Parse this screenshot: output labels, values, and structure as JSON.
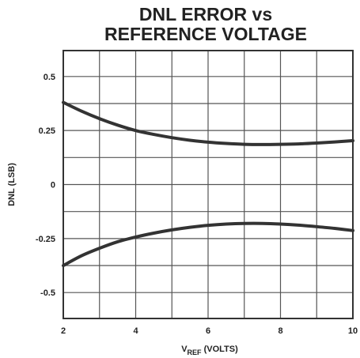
{
  "chart_data": {
    "type": "line",
    "title_lines": [
      "DNL ERROR vs",
      "REFERENCE VOLTAGE"
    ],
    "xlabel": {
      "main": "V",
      "sub": "REF",
      "rest": " (VOLTS)"
    },
    "ylabel": "DNL (LSB)",
    "xlim": [
      2,
      10
    ],
    "ylim": [
      -0.62,
      0.62
    ],
    "x_tick_labels": [
      {
        "value": 2,
        "label": "2"
      },
      {
        "value": 4,
        "label": "4"
      },
      {
        "value": 6,
        "label": "6"
      },
      {
        "value": 8,
        "label": "8"
      },
      {
        "value": 10,
        "label": "10"
      }
    ],
    "y_tick_labels": [
      {
        "value": 0.5,
        "label": "0.5"
      },
      {
        "value": 0.25,
        "label": "0.25"
      },
      {
        "value": 0,
        "label": "0"
      },
      {
        "value": -0.25,
        "label": "-0.25"
      },
      {
        "value": -0.5,
        "label": "-0.5"
      }
    ],
    "grid": true,
    "grid_x": [
      2,
      3,
      4,
      5,
      6,
      7,
      8,
      9,
      10
    ],
    "grid_y": [
      -0.5,
      -0.375,
      -0.25,
      -0.125,
      0,
      0.125,
      0.25,
      0.375,
      0.5
    ],
    "line_color": "#333333",
    "grid_color": "#555555",
    "series": [
      {
        "x": [
          2,
          2.5,
          3,
          3.5,
          4,
          4.5,
          5,
          5.5,
          6,
          6.5,
          7,
          7.5,
          8,
          8.5,
          9,
          9.5,
          10
        ],
        "values": [
          0.38,
          0.34,
          0.305,
          0.275,
          0.25,
          0.232,
          0.217,
          0.205,
          0.196,
          0.19,
          0.186,
          0.185,
          0.186,
          0.188,
          0.192,
          0.197,
          0.203
        ]
      },
      {
        "x": [
          2,
          2.5,
          3,
          3.5,
          4,
          4.5,
          5,
          5.5,
          6,
          6.5,
          7,
          7.5,
          8,
          8.5,
          9,
          9.5,
          10
        ],
        "values": [
          -0.375,
          -0.33,
          -0.295,
          -0.265,
          -0.243,
          -0.225,
          -0.21,
          -0.198,
          -0.189,
          -0.183,
          -0.18,
          -0.18,
          -0.183,
          -0.188,
          -0.195,
          -0.203,
          -0.213
        ]
      }
    ]
  }
}
